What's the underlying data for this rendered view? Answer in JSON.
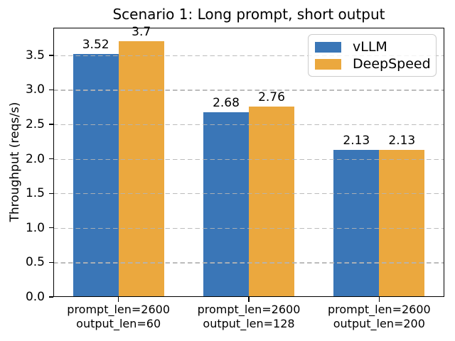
{
  "title": "Scenario 1: Long prompt, short output",
  "axes": {
    "ylabel": "Throughput (reqs/s)",
    "ytick_labels": [
      "0.0",
      "0.5",
      "1.0",
      "1.5",
      "2.0",
      "2.5",
      "3.0",
      "3.5"
    ]
  },
  "legend": {
    "items": [
      {
        "label": "vLLM",
        "color": "#3a76b7"
      },
      {
        "label": "DeepSpeed",
        "color": "#eba83e"
      }
    ],
    "position": "upper-right"
  },
  "colors": {
    "grid": "#b4b4b4",
    "spine": "#000000",
    "text": "#000000",
    "background": "#ffffff"
  },
  "chart_data": {
    "type": "bar",
    "title": "Scenario 1: Long prompt, short output",
    "xlabel": "",
    "ylabel": "Throughput (reqs/s)",
    "categories": [
      [
        "prompt_len=2600",
        "output_len=60"
      ],
      [
        "prompt_len=2600",
        "output_len=128"
      ],
      [
        "prompt_len=2600",
        "output_len=200"
      ]
    ],
    "series": [
      {
        "name": "vLLM",
        "color": "#3a76b7",
        "values": [
          3.52,
          2.68,
          2.13
        ],
        "labels": [
          "3.52",
          "2.68",
          "2.13"
        ]
      },
      {
        "name": "DeepSpeed",
        "color": "#eba83e",
        "values": [
          3.7,
          2.76,
          2.13
        ],
        "labels": [
          "3.7",
          "2.76",
          "2.13"
        ]
      }
    ],
    "ylim": [
      0,
      3.9
    ],
    "yticks": [
      0,
      0.5,
      1,
      1.5,
      2,
      2.5,
      3,
      3.5
    ],
    "grid": "horizontal-dashed",
    "legend_position": "upper right"
  }
}
